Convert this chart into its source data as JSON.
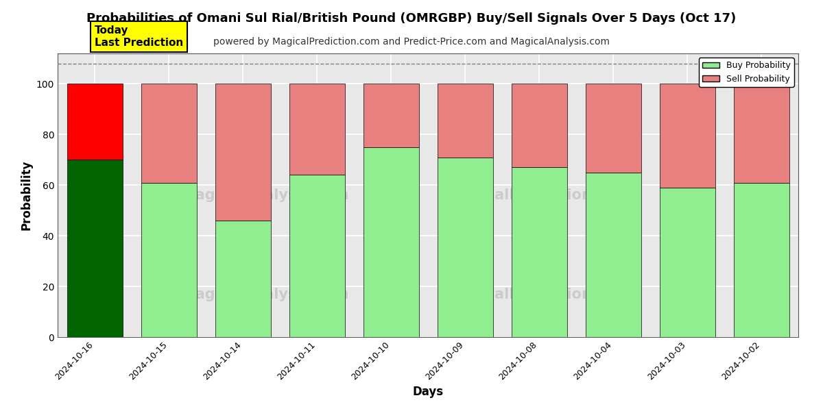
{
  "title": "Probabilities of Omani Sul Rial/British Pound (OMRGBP) Buy/Sell Signals Over 5 Days (Oct 17)",
  "subtitle": "powered by MagicalPrediction.com and Predict-Price.com and MagicalAnalysis.com",
  "xlabel": "Days",
  "ylabel": "Probability",
  "categories": [
    "2024-10-16",
    "2024-10-15",
    "2024-10-14",
    "2024-10-11",
    "2024-10-10",
    "2024-10-09",
    "2024-10-08",
    "2024-10-04",
    "2024-10-03",
    "2024-10-02"
  ],
  "buy_values": [
    70,
    61,
    46,
    64,
    75,
    71,
    67,
    65,
    59,
    61
  ],
  "sell_values": [
    30,
    39,
    54,
    36,
    25,
    29,
    33,
    35,
    41,
    39
  ],
  "today_buy_color": "#006400",
  "today_sell_color": "#ff0000",
  "buy_color": "#90ee90",
  "sell_color": "#e88080",
  "today_annotation_bg": "#ffff00",
  "today_annotation_text": "Today\nLast Prediction",
  "ylim": [
    0,
    112
  ],
  "yticks": [
    0,
    20,
    40,
    60,
    80,
    100
  ],
  "dashed_line_y": 108,
  "legend_buy_label": "Buy Probability",
  "legend_sell_label": "Sell Probability",
  "bar_edge_color": "#000000",
  "bar_linewidth": 0.5,
  "grid_color": "#ffffff",
  "plot_bg_color": "#e8e8e8",
  "fig_bg_color": "#ffffff",
  "title_fontsize": 13,
  "subtitle_fontsize": 10,
  "axis_label_fontsize": 12,
  "bar_width": 0.75
}
